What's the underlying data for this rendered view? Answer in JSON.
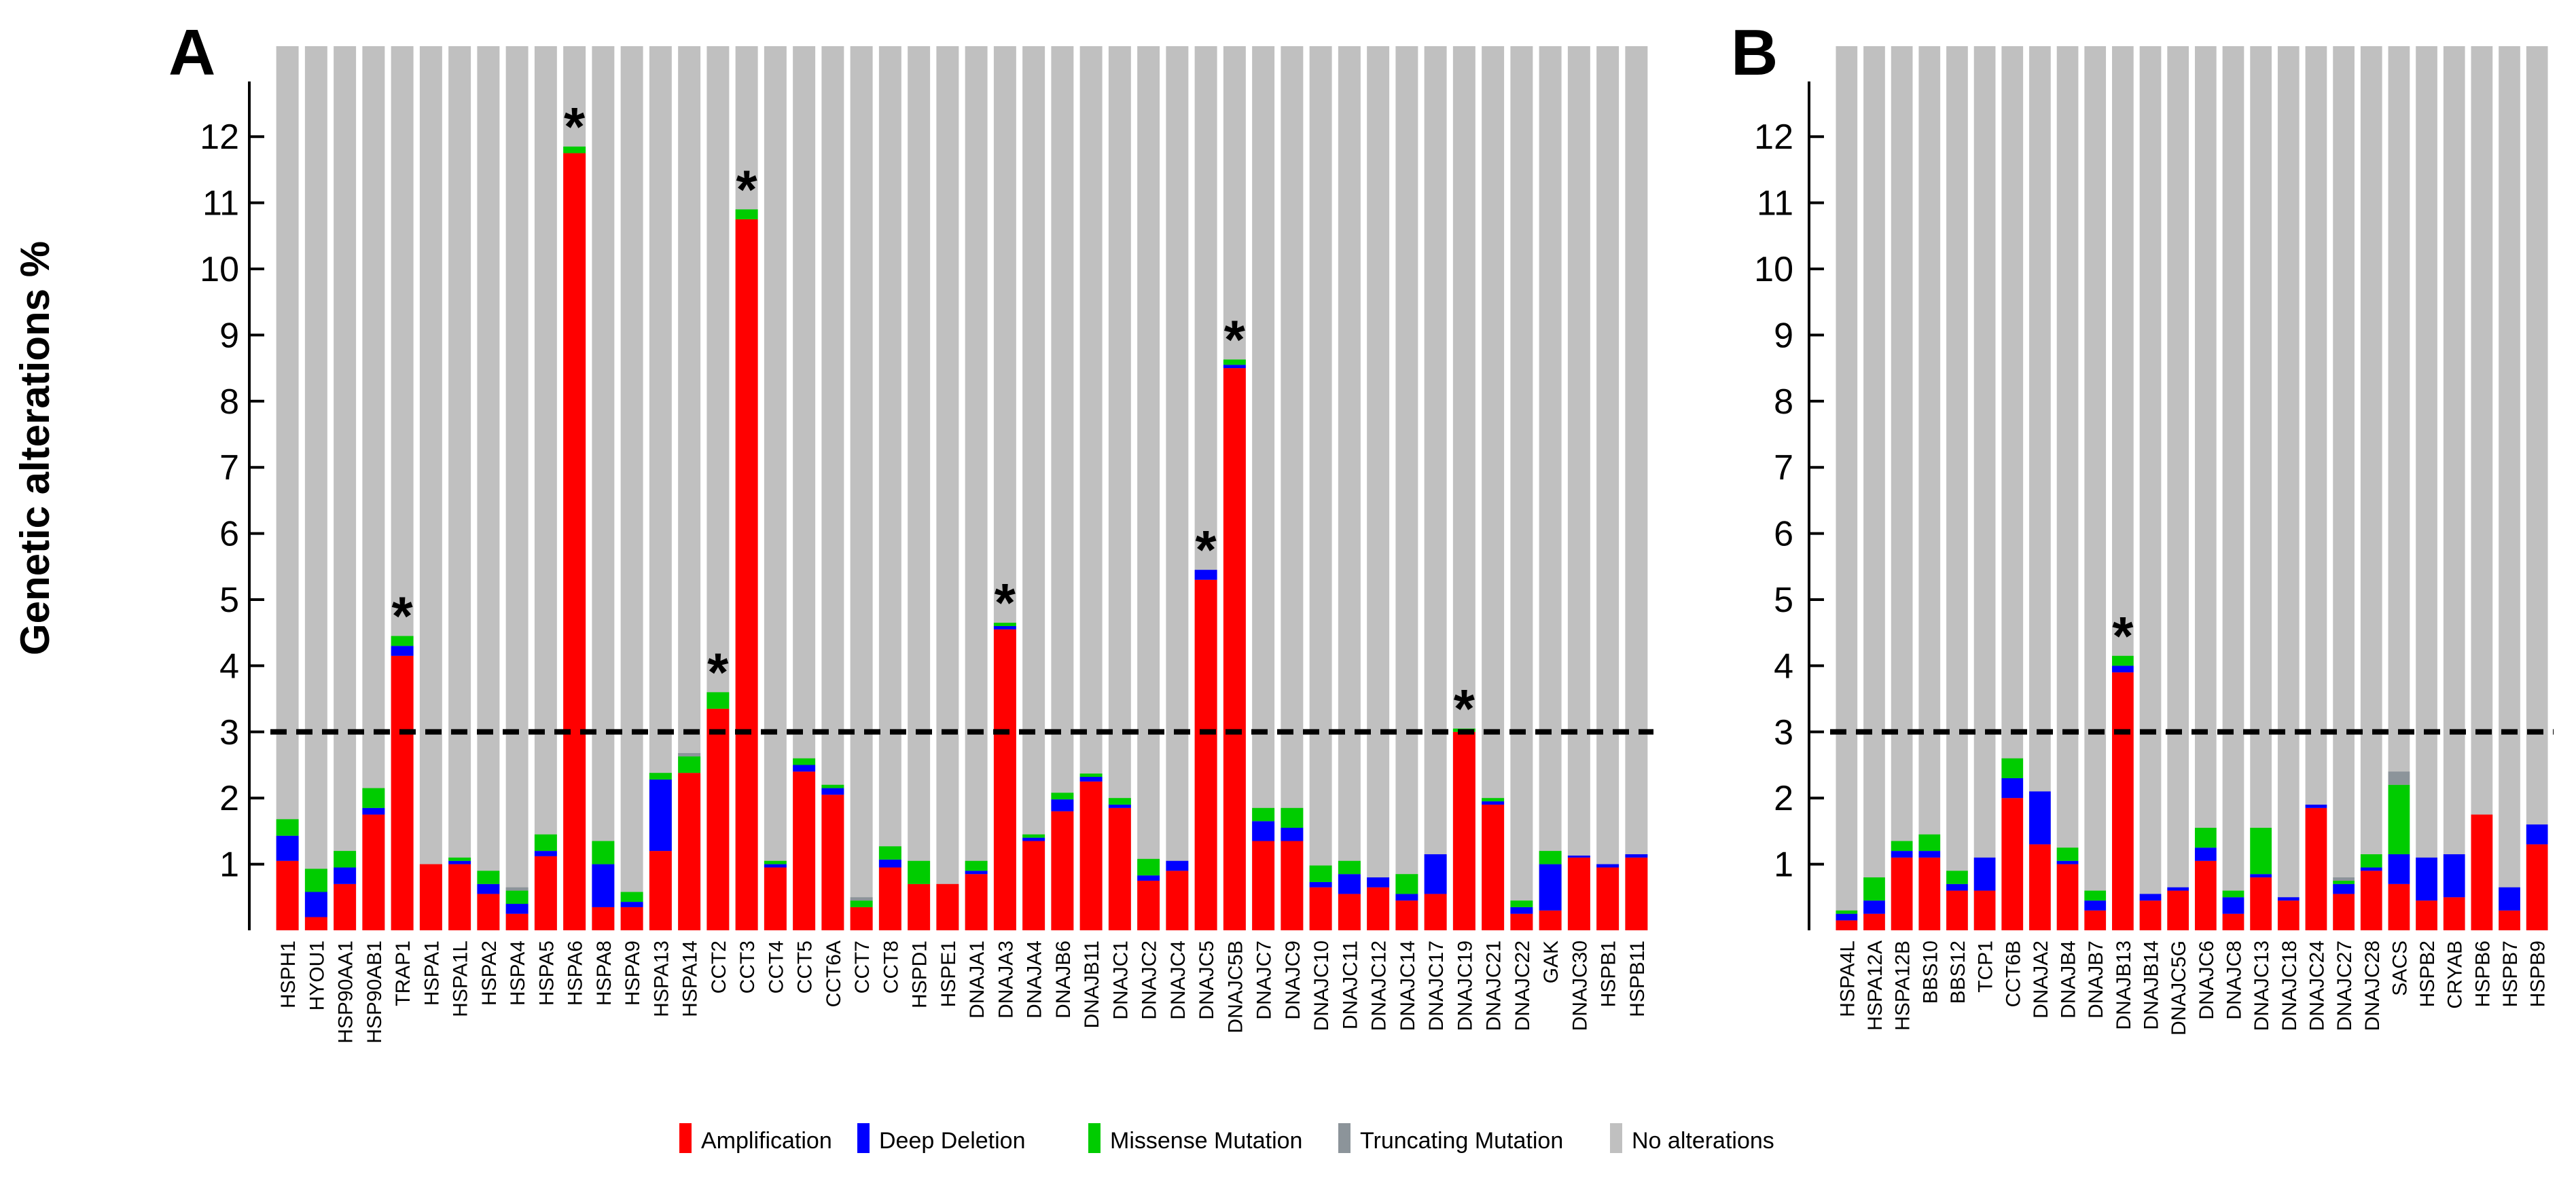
{
  "figure": {
    "y_axis_label": "Genetic alterations %",
    "significance_marker": "*",
    "threshold_value": 3
  },
  "legend": {
    "items": [
      {
        "label": "Amplification",
        "color": "#ff0000"
      },
      {
        "label": "Deep Deletion",
        "color": "#0000ff"
      },
      {
        "label": "Missense Mutation",
        "color": "#00cc00"
      },
      {
        "label": "Truncating Mutation",
        "color": "#8c949a"
      },
      {
        "label": "No alterations",
        "color": "#c0c0c0"
      }
    ]
  },
  "chart_data": [
    {
      "type": "bar",
      "stacked": true,
      "panel_label": "A",
      "ylabel": "Genetic alterations %",
      "ylim": [
        0,
        13
      ],
      "yticks": [
        1,
        2,
        3,
        4,
        5,
        6,
        7,
        8,
        9,
        10,
        11,
        12
      ],
      "threshold": 3,
      "categories": [
        "HSPH1",
        "HYOU1",
        "HSP90AA1",
        "HSP90AB1",
        "TRAP1",
        "HSPA1",
        "HSPA1L",
        "HSPA2",
        "HSPA4",
        "HSPA5",
        "HSPA6",
        "HSPA8",
        "HSPA9",
        "HSPA13",
        "HSPA14",
        "CCT2",
        "CCT3",
        "CCT4",
        "CCT5",
        "CCT6A",
        "CCT7",
        "CCT8",
        "HSPD1",
        "HSPE1",
        "DNAJA1",
        "DNAJA3",
        "DNAJA4",
        "DNAJB6",
        "DNAJB11",
        "DNAJC1",
        "DNAJC2",
        "DNAJC4",
        "DNAJC5",
        "DNAJC5B",
        "DNAJC7",
        "DNAJC9",
        "DNAJC10",
        "DNAJC11",
        "DNAJC12",
        "DNAJC14",
        "DNAJC17",
        "DNAJC19",
        "DNAJC21",
        "DNAJC22",
        "GAK",
        "DNAJC30",
        "HSPB1",
        "HSPB11"
      ],
      "significant": [
        "TRAP1",
        "HSPA6",
        "CCT2",
        "CCT3",
        "DNAJA3",
        "DNAJC5",
        "DNAJC5B",
        "DNAJC19"
      ],
      "series": [
        {
          "name": "Amplification",
          "values": [
            1.05,
            0.2,
            0.7,
            1.75,
            4.15,
            1.0,
            1.0,
            0.55,
            0.25,
            1.12,
            11.75,
            0.35,
            0.35,
            1.2,
            2.38,
            3.35,
            10.75,
            0.95,
            2.4,
            2.05,
            0.35,
            0.95,
            0.7,
            0.7,
            0.85,
            4.55,
            1.35,
            1.8,
            2.25,
            1.85,
            0.75,
            0.9,
            5.3,
            8.5,
            1.35,
            1.35,
            0.65,
            0.55,
            0.65,
            0.45,
            0.55,
            3.0,
            1.9,
            0.25,
            0.3,
            1.1,
            0.95,
            1.1
          ]
        },
        {
          "name": "Deep Deletion",
          "values": [
            0.38,
            0.38,
            0.25,
            0.1,
            0.15,
            0.0,
            0.05,
            0.15,
            0.15,
            0.08,
            0.0,
            0.65,
            0.08,
            1.08,
            0.0,
            0.0,
            0.0,
            0.05,
            0.1,
            0.1,
            0.0,
            0.12,
            0.0,
            0.0,
            0.05,
            0.05,
            0.05,
            0.18,
            0.07,
            0.05,
            0.08,
            0.15,
            0.15,
            0.05,
            0.3,
            0.2,
            0.08,
            0.3,
            0.15,
            0.1,
            0.6,
            0.0,
            0.05,
            0.1,
            0.7,
            0.03,
            0.05,
            0.05
          ]
        },
        {
          "name": "Missense Mutation",
          "values": [
            0.25,
            0.35,
            0.25,
            0.3,
            0.15,
            0.0,
            0.05,
            0.2,
            0.2,
            0.25,
            0.1,
            0.35,
            0.15,
            0.1,
            0.25,
            0.25,
            0.15,
            0.05,
            0.1,
            0.05,
            0.1,
            0.2,
            0.35,
            0.0,
            0.15,
            0.05,
            0.05,
            0.1,
            0.05,
            0.1,
            0.25,
            0.0,
            0.0,
            0.08,
            0.2,
            0.3,
            0.25,
            0.2,
            0.0,
            0.3,
            0.0,
            0.05,
            0.05,
            0.1,
            0.2,
            0.0,
            0.0,
            0.0
          ]
        },
        {
          "name": "Truncating Mutation",
          "values": [
            0.0,
            0.0,
            0.0,
            0.0,
            0.0,
            0.0,
            0.0,
            0.0,
            0.05,
            0.0,
            0.0,
            0.0,
            0.0,
            0.0,
            0.05,
            0.0,
            0.0,
            0.0,
            0.0,
            0.0,
            0.05,
            0.0,
            0.0,
            0.0,
            0.0,
            0.0,
            0.0,
            0.0,
            0.0,
            0.0,
            0.0,
            0.0,
            0.0,
            0.0,
            0.0,
            0.0,
            0.0,
            0.0,
            0.0,
            0.0,
            0.0,
            0.0,
            0.0,
            0.0,
            0.0,
            0.0,
            0.0,
            0.0
          ]
        }
      ]
    },
    {
      "type": "bar",
      "stacked": true,
      "panel_label": "B",
      "ylabel": "Genetic alterations %",
      "ylim": [
        0,
        13
      ],
      "yticks": [
        1,
        2,
        3,
        4,
        5,
        6,
        7,
        8,
        9,
        10,
        11,
        12
      ],
      "threshold": 3,
      "categories": [
        "HSPA4L",
        "HSPA12A",
        "HSPA12B",
        "BBS10",
        "BBS12",
        "TCP1",
        "CCT6B",
        "DNAJA2",
        "DNAJB4",
        "DNAJB7",
        "DNAJB13",
        "DNAJB14",
        "DNAJC5G",
        "DNAJC6",
        "DNAJC8",
        "DNAJC13",
        "DNAJC18",
        "DNAJC24",
        "DNAJC27",
        "DNAJC28",
        "SACS",
        "HSPB2",
        "CRYAB",
        "HSPB6",
        "HSPB7",
        "HSPB9"
      ],
      "significant": [
        "DNAJB13"
      ],
      "series": [
        {
          "name": "Amplification",
          "values": [
            0.15,
            0.25,
            1.1,
            1.1,
            0.6,
            0.6,
            2.0,
            1.3,
            1.0,
            0.3,
            3.9,
            0.45,
            0.6,
            1.05,
            0.25,
            0.8,
            0.45,
            1.85,
            0.55,
            0.9,
            0.7,
            0.45,
            0.5,
            1.75,
            0.3,
            1.3
          ]
        },
        {
          "name": "Deep Deletion",
          "values": [
            0.1,
            0.2,
            0.1,
            0.1,
            0.1,
            0.5,
            0.3,
            0.8,
            0.05,
            0.15,
            0.1,
            0.1,
            0.05,
            0.2,
            0.25,
            0.05,
            0.05,
            0.05,
            0.15,
            0.05,
            0.45,
            0.65,
            0.65,
            0.0,
            0.35,
            0.3
          ]
        },
        {
          "name": "Missense Mutation",
          "values": [
            0.05,
            0.35,
            0.15,
            0.25,
            0.2,
            0.0,
            0.3,
            0.0,
            0.2,
            0.15,
            0.15,
            0.0,
            0.0,
            0.3,
            0.1,
            0.7,
            0.0,
            0.0,
            0.05,
            0.2,
            1.05,
            0.0,
            0.0,
            0.0,
            0.0,
            0.0
          ]
        },
        {
          "name": "Truncating Mutation",
          "values": [
            0.0,
            0.0,
            0.0,
            0.0,
            0.0,
            0.0,
            0.0,
            0.0,
            0.0,
            0.0,
            0.0,
            0.0,
            0.0,
            0.0,
            0.0,
            0.0,
            0.0,
            0.0,
            0.05,
            0.0,
            0.2,
            0.0,
            0.0,
            0.0,
            0.0,
            0.0
          ]
        }
      ]
    }
  ]
}
